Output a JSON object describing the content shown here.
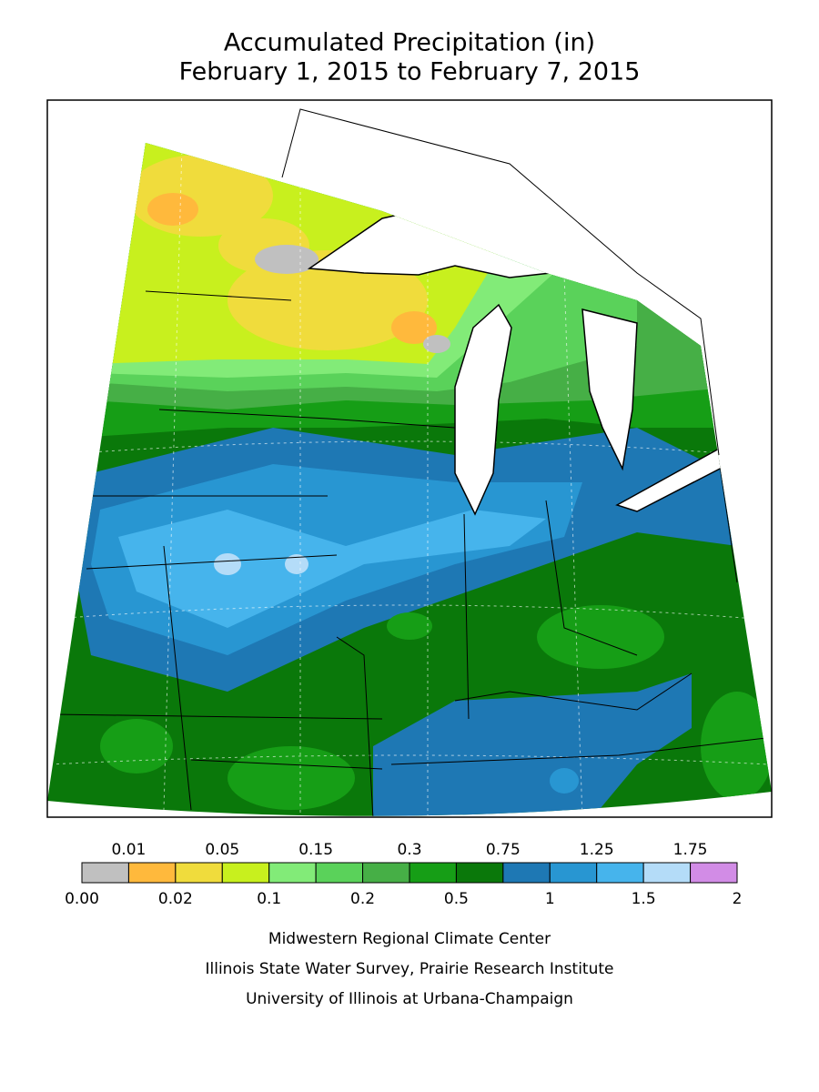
{
  "title": [
    "Accumulated Precipitation (in)",
    "February 1, 2015 to February 7, 2015"
  ],
  "legend": {
    "labels": [
      "0.00",
      "0.01",
      "0.02",
      "0.05",
      "0.1",
      "0.15",
      "0.2",
      "0.3",
      "0.5",
      "0.75",
      "1",
      "1.25",
      "1.5",
      "1.75",
      "2"
    ],
    "colors": [
      "#c0c0c0",
      "#ffb93c",
      "#f0dc3c",
      "#c8f01e",
      "#82eb78",
      "#5ad25a",
      "#46af46",
      "#169e16",
      "#0a780a",
      "#1e78b4",
      "#2896d2",
      "#46b4ec",
      "#b4dcf8",
      "#d28ce6"
    ]
  },
  "credits": [
    "Midwestern Regional Climate Center",
    "Illinois State Water Survey, Prairie Research Institute",
    "University of Illinois at Urbana-Champaign"
  ]
}
